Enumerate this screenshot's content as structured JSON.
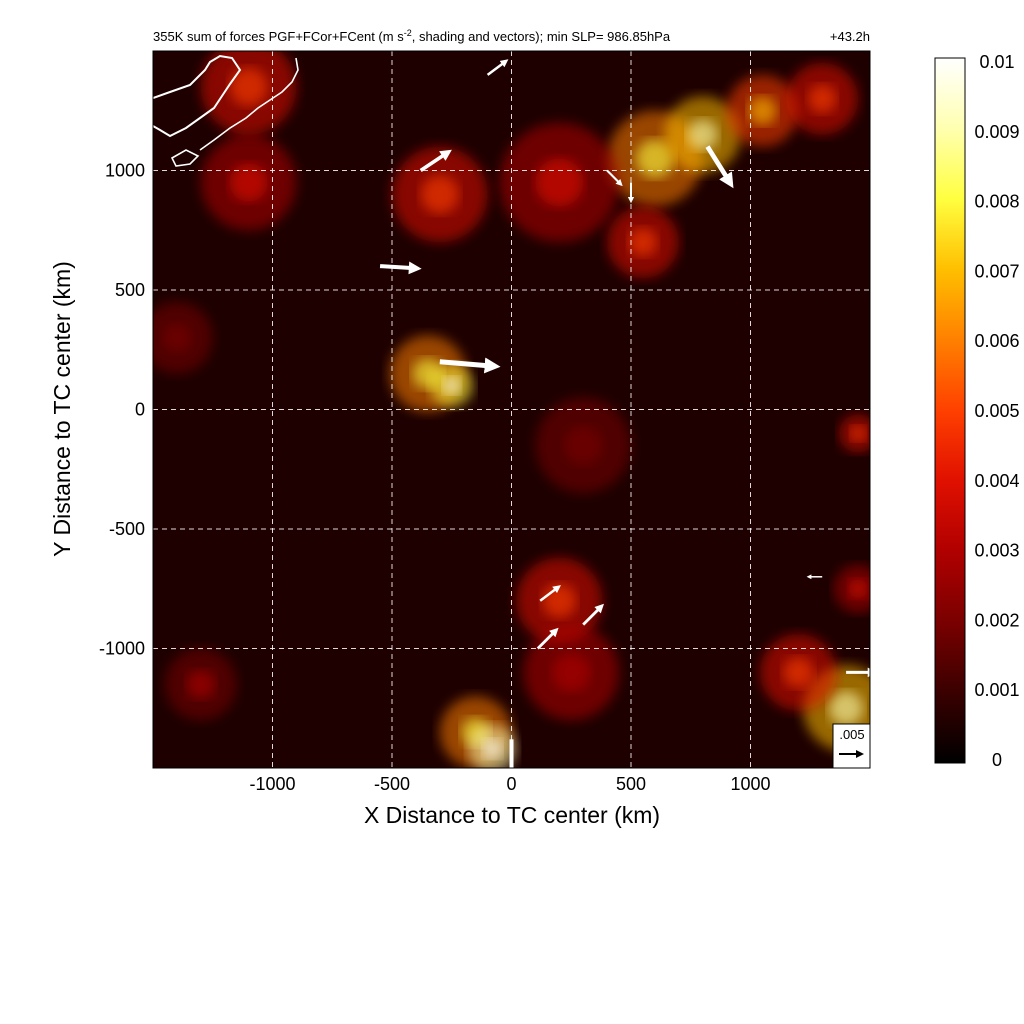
{
  "chart_data": {
    "type": "heatmap",
    "title": "355K sum of forces PGF+FCor+FCent (m s",
    "title_sup": "-2",
    "title_rest": ", shading and vectors); min SLP= 986.85hPa",
    "time_label": "+43.2h",
    "xlabel": "X Distance to TC center (km)",
    "ylabel": "Y Distance to TC center (km)",
    "xlim": [
      -1500,
      1500
    ],
    "ylim": [
      -1500,
      1500
    ],
    "x_ticks": [
      -1000,
      -500,
      0,
      500,
      1000
    ],
    "y_ticks": [
      -1000,
      -500,
      0,
      500,
      1000
    ],
    "x_tick_labels": [
      "-1000",
      "-500",
      "0",
      "500",
      "1000"
    ],
    "y_tick_labels": [
      "-1000",
      "-500",
      "0",
      "500",
      "1000"
    ],
    "grid": true,
    "colorbar": {
      "min": 0,
      "max": 0.01,
      "ticks": [
        0,
        0.001,
        0.002,
        0.003,
        0.004,
        0.005,
        0.006,
        0.007,
        0.008,
        0.009,
        0.01
      ],
      "tick_labels": [
        "0",
        "0.001",
        "0.002",
        "0.003",
        "0.004",
        "0.005",
        "0.006",
        "0.007",
        "0.008",
        "0.009",
        "0.01"
      ],
      "colors": [
        "#000000",
        "#3a0000",
        "#7a0000",
        "#b00000",
        "#e01000",
        "#ff4000",
        "#ff8000",
        "#ffbf00",
        "#ffff40",
        "#ffffb0",
        "#ffffff"
      ]
    },
    "reference_vector": {
      "label": ".005",
      "magnitude": 0.005
    },
    "hotspots": [
      {
        "x": -350,
        "y": 150,
        "r": 160,
        "v": 0.006
      },
      {
        "x": -250,
        "y": 100,
        "r": 90,
        "v": 0.008
      },
      {
        "x": 600,
        "y": 1050,
        "r": 200,
        "v": 0.006
      },
      {
        "x": 800,
        "y": 1150,
        "r": 160,
        "v": 0.007
      },
      {
        "x": 1050,
        "y": 1250,
        "r": 150,
        "v": 0.005
      },
      {
        "x": 1300,
        "y": 1300,
        "r": 150,
        "v": 0.004
      },
      {
        "x": 200,
        "y": 950,
        "r": 250,
        "v": 0.003
      },
      {
        "x": -300,
        "y": 900,
        "r": 200,
        "v": 0.0035
      },
      {
        "x": -1100,
        "y": 950,
        "r": 200,
        "v": 0.003
      },
      {
        "x": -1100,
        "y": 1350,
        "r": 200,
        "v": 0.0035
      },
      {
        "x": 550,
        "y": 700,
        "r": 150,
        "v": 0.004
      },
      {
        "x": -150,
        "y": -1350,
        "r": 150,
        "v": 0.006
      },
      {
        "x": -80,
        "y": -1420,
        "r": 100,
        "v": 0.009
      },
      {
        "x": 200,
        "y": -800,
        "r": 180,
        "v": 0.004
      },
      {
        "x": 250,
        "y": -1100,
        "r": 200,
        "v": 0.0025
      },
      {
        "x": 1400,
        "y": -1250,
        "r": 180,
        "v": 0.007
      },
      {
        "x": 1200,
        "y": -1100,
        "r": 160,
        "v": 0.004
      },
      {
        "x": 1450,
        "y": -750,
        "r": 100,
        "v": 0.003
      },
      {
        "x": 1450,
        "y": -100,
        "r": 80,
        "v": 0.004
      },
      {
        "x": -1300,
        "y": -1150,
        "r": 150,
        "v": 0.002
      },
      {
        "x": -1400,
        "y": 300,
        "r": 150,
        "v": 0.0015
      },
      {
        "x": 300,
        "y": -150,
        "r": 200,
        "v": 0.0015
      }
    ],
    "vectors": [
      {
        "x": -550,
        "y": 600,
        "u": 0.008,
        "v": -0.0005
      },
      {
        "x": -380,
        "y": 1000,
        "u": 0.006,
        "v": 0.004
      },
      {
        "x": -300,
        "y": 200,
        "u": 0.012,
        "v": -0.001
      },
      {
        "x": 820,
        "y": 1100,
        "u": 0.005,
        "v": -0.008
      },
      {
        "x": 400,
        "y": 1000,
        "u": 0.003,
        "v": -0.003
      },
      {
        "x": 0,
        "y": -1380,
        "u": 0,
        "v": -0.008
      },
      {
        "x": -100,
        "y": 1400,
        "u": 0.004,
        "v": 0.003
      },
      {
        "x": 110,
        "y": -1000,
        "u": 0.004,
        "v": 0.004
      },
      {
        "x": 300,
        "y": -900,
        "u": 0.004,
        "v": 0.004
      },
      {
        "x": 120,
        "y": -800,
        "u": 0.004,
        "v": 0.003
      },
      {
        "x": 1400,
        "y": -1100,
        "u": 0.006,
        "v": 0
      },
      {
        "x": 1300,
        "y": -700,
        "u": -0.003,
        "v": 0
      },
      {
        "x": 500,
        "y": 950,
        "u": 0,
        "v": -0.004
      }
    ]
  }
}
